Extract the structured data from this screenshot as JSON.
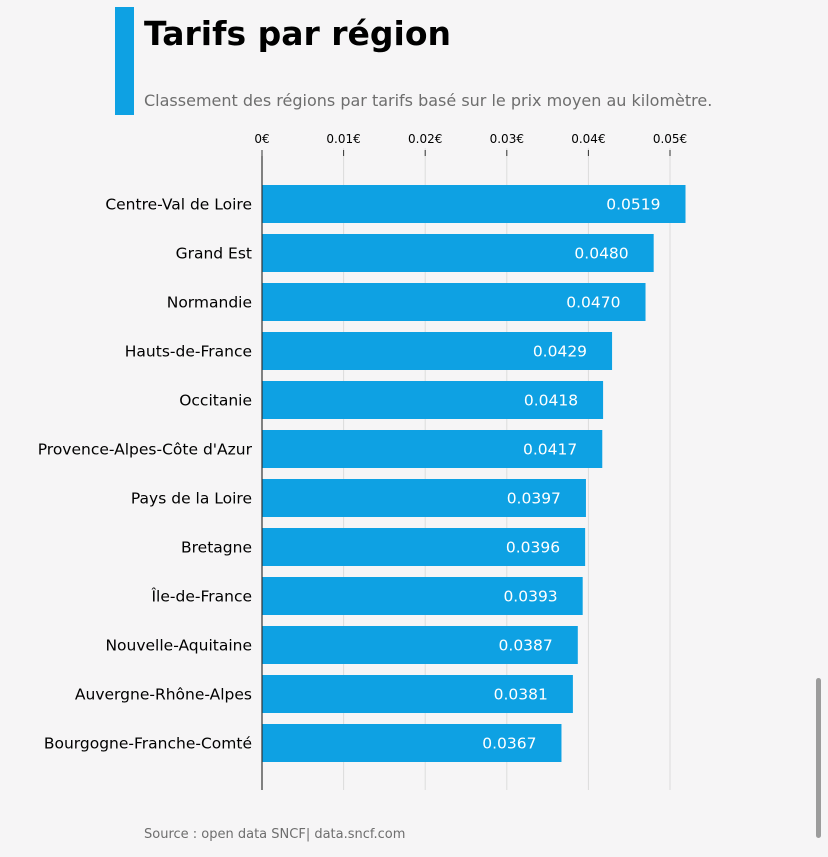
{
  "header": {
    "title": "Tarifs par région",
    "subtitle": "Classement des régions par tarifs basé sur le prix moyen au kilomètre."
  },
  "footer": {
    "source": "Source : open data SNCF| data.sncf.com"
  },
  "colors": {
    "accent": "#0ea1e3",
    "bar": "#0ea1e3",
    "background": "#f6f5f6",
    "grid": "#dcdcdc",
    "axis": "#333333"
  },
  "chart_data": {
    "type": "bar",
    "orientation": "horizontal",
    "categories": [
      "Centre-Val de Loire",
      "Grand Est",
      "Normandie",
      "Hauts-de-France",
      "Occitanie",
      "Provence-Alpes-Côte d'Azur",
      "Pays de la Loire",
      "Bretagne",
      "Île-de-France",
      "Nouvelle-Aquitaine",
      "Auvergne-Rhône-Alpes",
      "Bourgogne-Franche-Comté"
    ],
    "values": [
      0.0519,
      0.048,
      0.047,
      0.0429,
      0.0418,
      0.0417,
      0.0397,
      0.0396,
      0.0393,
      0.0387,
      0.0381,
      0.0367
    ],
    "value_labels": [
      "0.0519",
      "0.0480",
      "0.0470",
      "0.0429",
      "0.0418",
      "0.0417",
      "0.0397",
      "0.0396",
      "0.0393",
      "0.0387",
      "0.0381",
      "0.0367"
    ],
    "x_ticks": [
      0,
      0.01,
      0.02,
      0.03,
      0.04,
      0.05
    ],
    "x_tick_labels": [
      "0€",
      "0.01€",
      "0.02€",
      "0.03€",
      "0.04€",
      "0.05€"
    ],
    "xlim": [
      0,
      0.0553
    ],
    "x_axis_position": "top",
    "grid": true,
    "legend": "none"
  }
}
